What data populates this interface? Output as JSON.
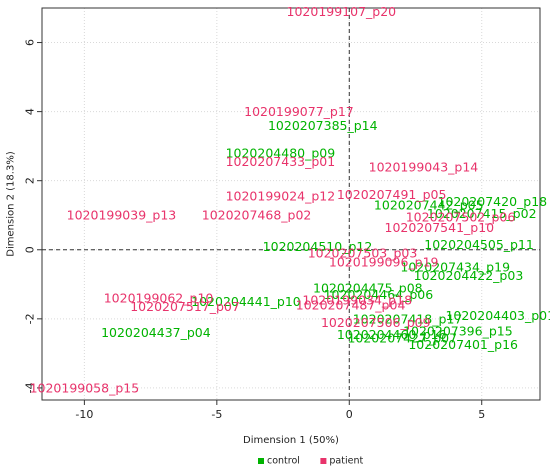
{
  "chart_data": {
    "type": "scatter",
    "title": "",
    "xlabel": "Dimension 1 (50%)",
    "ylabel": "Dimension 2 (18.3%)",
    "xlim": [
      -11.6,
      7.2
    ],
    "ylim": [
      -4.35,
      7.0
    ],
    "x_ticks": [
      -10,
      -5,
      0,
      5
    ],
    "y_ticks": [
      -4,
      -2,
      0,
      2,
      4,
      6
    ],
    "grid": true,
    "legend_position": "bottom-center",
    "colors": {
      "control": "#00b300",
      "patient": "#e8336b"
    },
    "legend": [
      {
        "name": "control",
        "color": "#00b300"
      },
      {
        "name": "patient",
        "color": "#e8336b"
      }
    ],
    "series": [
      {
        "name": "control",
        "points": [
          {
            "label": "1020207385_p14",
            "x": -1.0,
            "y": 3.6
          },
          {
            "label": "1020204480_p09",
            "x": -2.6,
            "y": 2.8
          },
          {
            "label": "1020207420_p18",
            "x": 5.4,
            "y": 1.4
          },
          {
            "label": "1020207442_p05",
            "x": 3.0,
            "y": 1.3
          },
          {
            "label": "1020207415_p02",
            "x": 5.0,
            "y": 1.05
          },
          {
            "label": "1020204510_p12",
            "x": -1.2,
            "y": 0.1
          },
          {
            "label": "1020204505_p11",
            "x": 4.9,
            "y": 0.15
          },
          {
            "label": "1020207434_p19",
            "x": 4.0,
            "y": -0.5
          },
          {
            "label": "1020204422_p03",
            "x": 4.5,
            "y": -0.75
          },
          {
            "label": "1020204475_p08",
            "x": 0.7,
            "y": -1.1
          },
          {
            "label": "1020204464_p06",
            "x": 1.1,
            "y": -1.3
          },
          {
            "label": "1020204441_p10",
            "x": -3.9,
            "y": -1.5
          },
          {
            "label": "1020204403_p01",
            "x": 5.7,
            "y": -1.9
          },
          {
            "label": "1020207418_p17",
            "x": 2.2,
            "y": -2.0
          },
          {
            "label": "1020207396_p15",
            "x": 4.1,
            "y": -2.35
          },
          {
            "label": "1020204437_p04",
            "x": -7.3,
            "y": -2.4
          },
          {
            "label": "1020204460_p16",
            "x": 1.6,
            "y": -2.45
          },
          {
            "label": "1020207427_p07",
            "x": 2.0,
            "y": -2.55
          },
          {
            "label": "1020207401_p16",
            "x": 4.3,
            "y": -2.75
          }
        ]
      },
      {
        "name": "patient",
        "points": [
          {
            "label": "1020199107_p20",
            "x": -0.3,
            "y": 6.9
          },
          {
            "label": "1020199077_p17",
            "x": -1.9,
            "y": 4.0
          },
          {
            "label": "1020207433_p01",
            "x": -2.6,
            "y": 2.55
          },
          {
            "label": "1020199043_p14",
            "x": 2.8,
            "y": 2.4
          },
          {
            "label": "1020207491_p05",
            "x": 1.6,
            "y": 1.6
          },
          {
            "label": "1020199024_p12",
            "x": -2.6,
            "y": 1.55
          },
          {
            "label": "1020207502_p06",
            "x": 4.2,
            "y": 0.95
          },
          {
            "label": "1020207541_p10",
            "x": 3.4,
            "y": 0.65
          },
          {
            "label": "1020199039_p13",
            "x": -8.6,
            "y": 1.0
          },
          {
            "label": "1020207468_p02",
            "x": -3.5,
            "y": 1.0
          },
          {
            "label": "1020207503_p03",
            "x": 0.5,
            "y": -0.1
          },
          {
            "label": "1020199096_p19",
            "x": 1.3,
            "y": -0.35
          },
          {
            "label": "1020199062_p10",
            "x": -7.2,
            "y": -1.4
          },
          {
            "label": "1020207517_p07",
            "x": -6.2,
            "y": -1.65
          },
          {
            "label": "1020199034_p18",
            "x": 0.3,
            "y": -1.45
          },
          {
            "label": "1020207487_p04",
            "x": 0.05,
            "y": -1.6
          },
          {
            "label": "1020207506_p09",
            "x": 1.0,
            "y": -2.1
          },
          {
            "label": "1020199058_p15",
            "x": -10.0,
            "y": -4.0
          }
        ]
      }
    ]
  }
}
